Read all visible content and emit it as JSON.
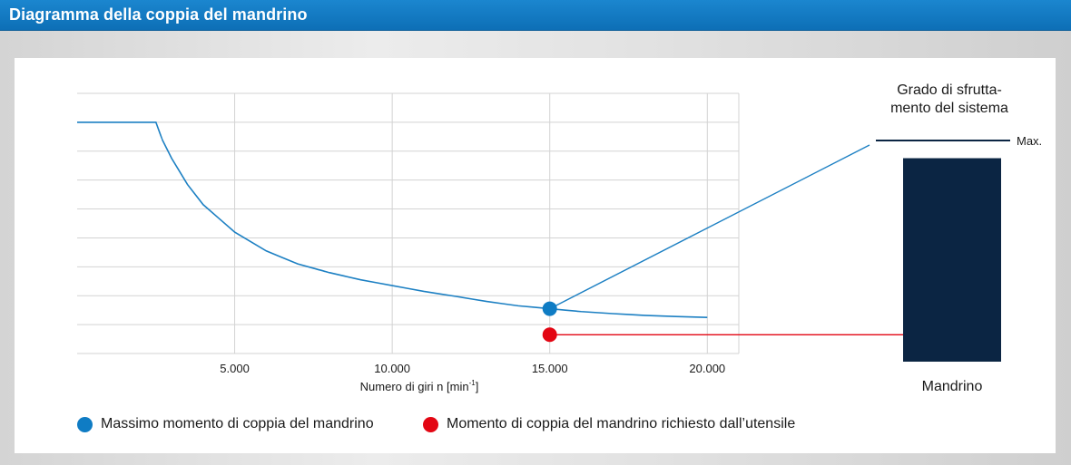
{
  "header": {
    "title": "Diagramma della coppia del mandrino"
  },
  "colors": {
    "accent_blue": "#0f7cc4",
    "line_blue": "#1d80c3",
    "required_red": "#e30613",
    "bar_navy": "#0b2543",
    "grid": "#d3d3d3"
  },
  "chart_data": {
    "type": "line",
    "xlabel": "Numero di giri n [min",
    "xlabel_sup": "-1",
    "xlabel_close": "]",
    "ylabel": "",
    "xlim": [
      0,
      21000
    ],
    "ylim": [
      0,
      9
    ],
    "grid": true,
    "x_ticks": [
      5000,
      10000,
      15000,
      20000
    ],
    "x_tick_labels": [
      "5.000",
      "10.000",
      "15.000",
      "20.000"
    ],
    "y_gridlines": 9,
    "series": [
      {
        "name": "Massimo momento di coppia del mandrino",
        "color": "#1d80c3",
        "x": [
          0,
          2500,
          2700,
          3000,
          3500,
          4000,
          5000,
          6000,
          7000,
          8000,
          9000,
          10000,
          11000,
          12000,
          13000,
          14000,
          15000,
          16000,
          17000,
          18000,
          19000,
          20000
        ],
        "y": [
          8.0,
          8.0,
          7.4,
          6.75,
          5.85,
          5.15,
          4.2,
          3.55,
          3.1,
          2.8,
          2.55,
          2.35,
          2.15,
          1.98,
          1.8,
          1.65,
          1.55,
          1.45,
          1.38,
          1.32,
          1.28,
          1.25
        ]
      }
    ],
    "points": [
      {
        "name": "Massimo momento di coppia del mandrino",
        "x": 15000,
        "y": 1.55,
        "color": "#0f7cc4"
      },
      {
        "name": "Momento di coppia del mandrino richiesto dall’utensile",
        "x": 15000,
        "y": 0.65,
        "color": "#e30613"
      }
    ]
  },
  "utilization": {
    "title_line1": "Grado di sfrutta-",
    "title_line2": "mento del sistema",
    "max_label": "Max.",
    "bar_label": "Mandrino",
    "bar_fill_fraction": 0.92
  },
  "legend": [
    {
      "label": "Massimo momento di coppia del mandrino",
      "color": "#0f7cc4"
    },
    {
      "label": "Momento di coppia del mandrino richiesto dall’utensile",
      "color": "#e30613"
    }
  ]
}
